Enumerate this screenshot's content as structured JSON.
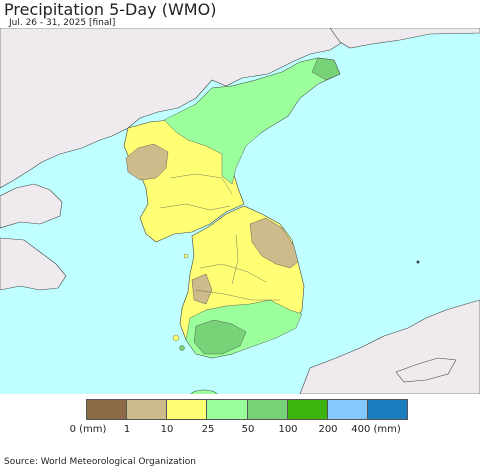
{
  "title": "Precipitation 5-Day (WMO)",
  "subtitle": "Jul. 26 - 31, 2025 [final]",
  "colors": {
    "ocean": "#bfffff",
    "foreign_land": "#eeeaee",
    "border": "#444444"
  },
  "legend": {
    "bins": [
      {
        "color": "#8b6a47"
      },
      {
        "color": "#cdbb8b"
      },
      {
        "color": "#ffff76"
      },
      {
        "color": "#9bff9b"
      },
      {
        "color": "#78d278"
      },
      {
        "color": "#3cb40e"
      },
      {
        "color": "#85c8ff"
      },
      {
        "color": "#1b7cc0"
      }
    ],
    "ticks": [
      {
        "label": "0 (mm)",
        "pos": 0
      },
      {
        "label": "1",
        "pos": 1
      },
      {
        "label": "10",
        "pos": 2
      },
      {
        "label": "25",
        "pos": 3
      },
      {
        "label": "50",
        "pos": 4
      },
      {
        "label": "100",
        "pos": 5
      },
      {
        "label": "200",
        "pos": 6
      },
      {
        "label": "400 (mm)",
        "pos": 7
      }
    ]
  },
  "source": "Source: World Meteorological Organization"
}
